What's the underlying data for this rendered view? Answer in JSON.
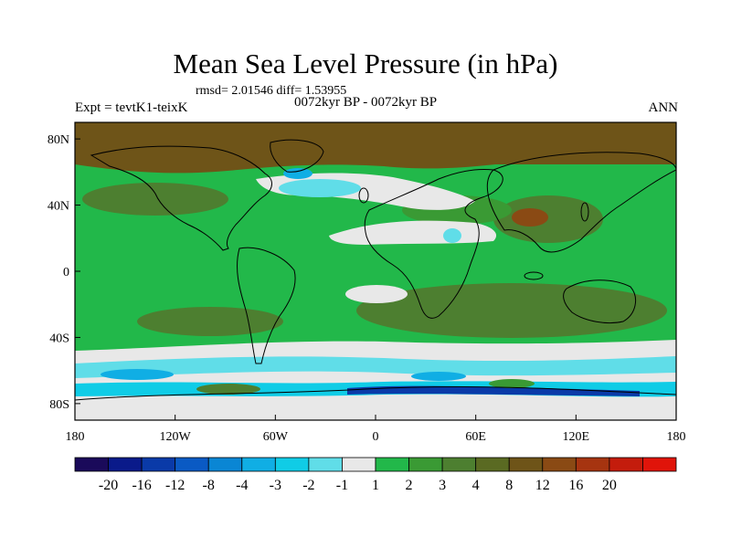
{
  "title": "Mean Sea Level Pressure (in hPa)",
  "stats_line": "rmsd= 2.01546 diff= 1.53955",
  "left_label": "Expt = tevtK1-teixK",
  "center_label": "0072kyr BP - 0072kyr BP",
  "right_label": "ANN",
  "y_ticks": [
    {
      "lat": 80,
      "label": "80N"
    },
    {
      "lat": 40,
      "label": "40N"
    },
    {
      "lat": 0,
      "label": "0"
    },
    {
      "lat": -40,
      "label": "40S"
    },
    {
      "lat": -80,
      "label": "80S"
    }
  ],
  "x_ticks": [
    {
      "lon": -180,
      "label": "180"
    },
    {
      "lon": -120,
      "label": "120W"
    },
    {
      "lon": -60,
      "label": "60W"
    },
    {
      "lon": 0,
      "label": "0"
    },
    {
      "lon": 60,
      "label": "60E"
    },
    {
      "lon": 120,
      "label": "120E"
    },
    {
      "lon": 180,
      "label": "180"
    }
  ],
  "legend": {
    "colors": [
      "#1a0a5a",
      "#0a1a8a",
      "#0a3aa8",
      "#0a5ac4",
      "#0a86d4",
      "#10aee4",
      "#10cce6",
      "#60dde8",
      "#e8e8e8",
      "#22b84a",
      "#3a9a34",
      "#4d7f30",
      "#5a6a22",
      "#6e5418",
      "#8a4a14",
      "#a63410",
      "#c41c0c",
      "#e0140a"
    ],
    "labels": [
      "-20",
      "-16",
      "-12",
      "-8",
      "-4",
      "-3",
      "-2",
      "-1",
      "1",
      "2",
      "3",
      "4",
      "8",
      "12",
      "16",
      "20"
    ]
  }
}
